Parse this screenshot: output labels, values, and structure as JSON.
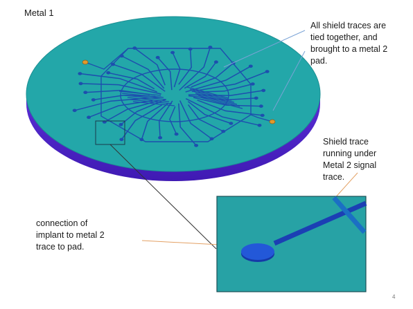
{
  "slide": {
    "title": "Metal 1",
    "page_number": "4"
  },
  "annotations": {
    "shield_traces": [
      "All shield traces are",
      "tied together, and",
      "brought to a metal 2",
      "pad."
    ],
    "shield_trace_under": [
      "Shield trace",
      "running under",
      "Metal 2 signal",
      "trace."
    ],
    "connection": [
      "connection of",
      "implant to metal 2",
      "trace to pad."
    ]
  },
  "colors": {
    "wafer_top": "#23a7a9",
    "wafer_side": "#5d2bd6",
    "trace": "#1d4fae",
    "pad": "#e29a2b",
    "leader_blue": "#7aa3d6",
    "leader_orange": "#e3a063",
    "inset_bg": "#27a2a5"
  }
}
